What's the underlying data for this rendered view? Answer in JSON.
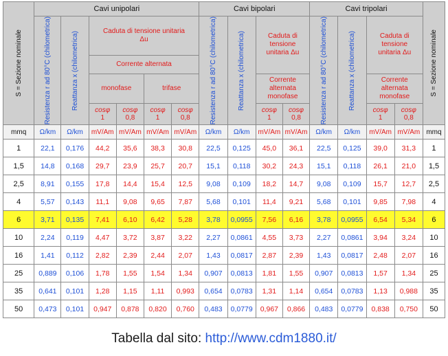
{
  "header": {
    "sezione": "S = Sezione nominale",
    "groups": [
      "Cavi unipolari",
      "Cavi bipolari",
      "Cavi tripolari"
    ],
    "resistenza": "Resistenza r ad 80°C (chilometrica)",
    "reattanza": "Reattanza x (chilometrica)",
    "caduta_label": "Caduta di tensione unitaria Δu",
    "corrente_alternata": "Corrente alternata",
    "corrente_alternata_monofase": "Corrente alternata monofase",
    "monofase": "monofase",
    "trifase": "trifase",
    "cos_symbol": "cosφ",
    "cos_values": [
      "1",
      "0,8"
    ]
  },
  "units": [
    "mmq",
    "Ω/km",
    "Ω/km",
    "mV/Am",
    "mV/Am",
    "mV/Am",
    "mV/Am",
    "Ω/km",
    "Ω/km",
    "mV/Am",
    "mV/Am",
    "Ω/km",
    "Ω/km",
    "mV/Am",
    "mV/Am",
    "mmq"
  ],
  "rows": [
    [
      "1",
      "22,1",
      "0,176",
      "44,2",
      "35,6",
      "38,3",
      "30,8",
      "22,5",
      "0,125",
      "45,0",
      "36,1",
      "22,5",
      "0,125",
      "39,0",
      "31,3",
      "1"
    ],
    [
      "1,5",
      "14,8",
      "0,168",
      "29,7",
      "23,9",
      "25,7",
      "20,7",
      "15,1",
      "0,118",
      "30,2",
      "24,3",
      "15,1",
      "0,118",
      "26,1",
      "21,0",
      "1,5"
    ],
    [
      "2,5",
      "8,91",
      "0,155",
      "17,8",
      "14,4",
      "15,4",
      "12,5",
      "9,08",
      "0,109",
      "18,2",
      "14,7",
      "9,08",
      "0,109",
      "15,7",
      "12,7",
      "2,5"
    ],
    [
      "4",
      "5,57",
      "0,143",
      "11,1",
      "9,08",
      "9,65",
      "7,87",
      "5,68",
      "0,101",
      "11,4",
      "9,21",
      "5,68",
      "0,101",
      "9,85",
      "7,98",
      "4"
    ],
    [
      "6",
      "3,71",
      "0,135",
      "7,41",
      "6,10",
      "6,42",
      "5,28",
      "3,78",
      "0,0955",
      "7,56",
      "6,16",
      "3,78",
      "0,0955",
      "6,54",
      "5,34",
      "6"
    ],
    [
      "10",
      "2,24",
      "0,119",
      "4,47",
      "3,72",
      "3,87",
      "3,22",
      "2,27",
      "0,0861",
      "4,55",
      "3,73",
      "2,27",
      "0,0861",
      "3,94",
      "3,24",
      "10"
    ],
    [
      "16",
      "1,41",
      "0,112",
      "2,82",
      "2,39",
      "2,44",
      "2,07",
      "1,43",
      "0,0817",
      "2,87",
      "2,39",
      "1,43",
      "0,0817",
      "2,48",
      "2,07",
      "16"
    ],
    [
      "25",
      "0,889",
      "0,106",
      "1,78",
      "1,55",
      "1,54",
      "1,34",
      "0,907",
      "0,0813",
      "1,81",
      "1,55",
      "0,907",
      "0,0813",
      "1,57",
      "1,34",
      "25"
    ],
    [
      "35",
      "0,641",
      "0,101",
      "1,28",
      "1,15",
      "1,11",
      "0,993",
      "0,654",
      "0,0783",
      "1,31",
      "1,14",
      "0,654",
      "0,0783",
      "1,13",
      "0,988",
      "35"
    ],
    [
      "50",
      "0,473",
      "0,101",
      "0,947",
      "0,878",
      "0,820",
      "0,760",
      "0,483",
      "0,0779",
      "0,967",
      "0,866",
      "0,483",
      "0,0779",
      "0,838",
      "0,750",
      "50"
    ]
  ],
  "highlighted_row": 4,
  "colors": {
    "highlight": "#fffb2e",
    "red": "#e21a1a",
    "blue": "#1d4fd6",
    "header": "#cfcfcf"
  },
  "caption": {
    "text": "Tabella dal sito: ",
    "link": "http://www.cdm1880.it/"
  }
}
